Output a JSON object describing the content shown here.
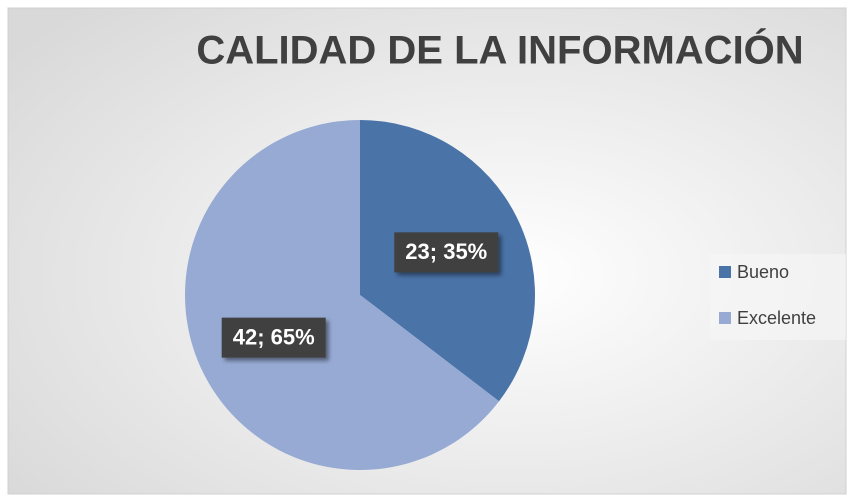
{
  "chart_data": {
    "type": "pie",
    "title": "CALIDAD DE LA INFORMACIÓN",
    "categories": [
      "Bueno",
      "Excelente"
    ],
    "values": [
      23,
      42
    ],
    "value_labels": [
      "23; 35%",
      "42; 65%"
    ],
    "colors": [
      "#4a73a8",
      "#96aad4"
    ],
    "legend": "right"
  }
}
